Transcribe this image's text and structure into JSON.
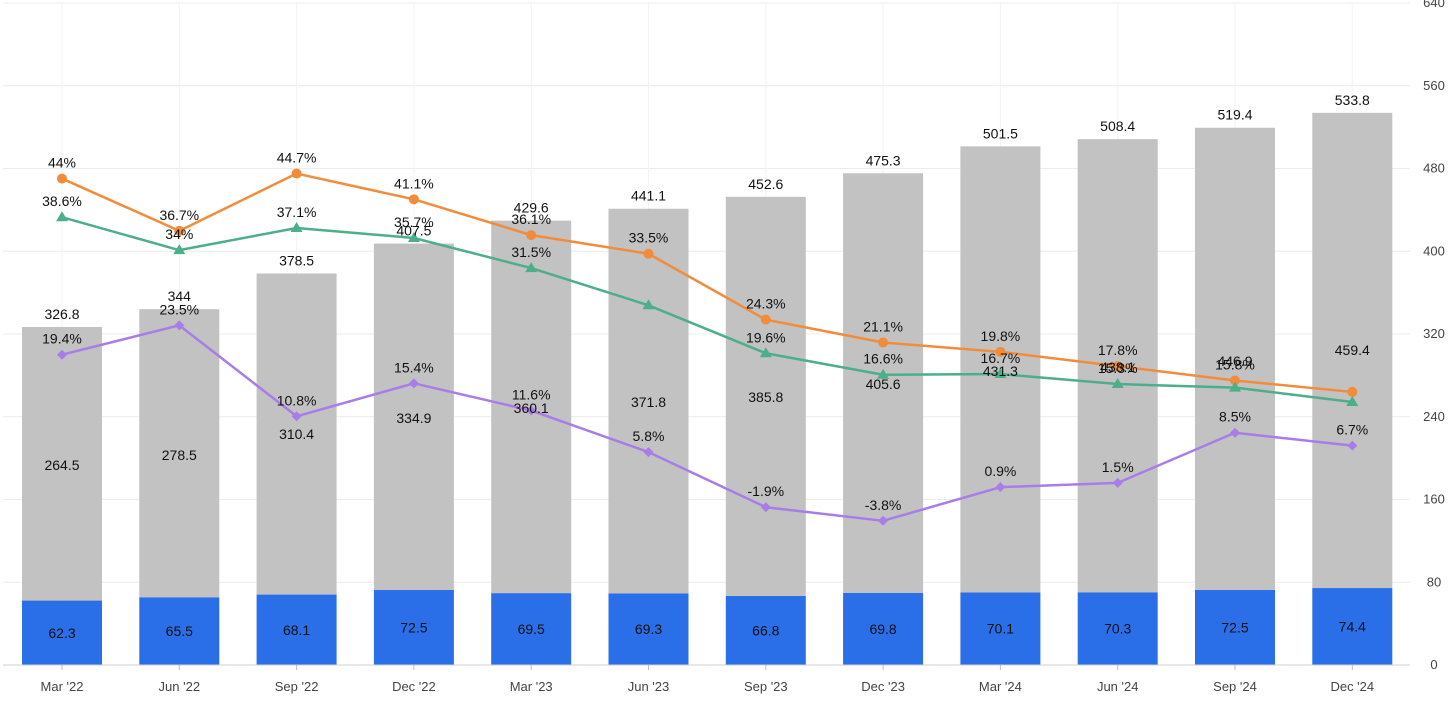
{
  "chart_data": {
    "type": "bar",
    "title": "",
    "xlabel": "",
    "ylabel": "",
    "ylim": [
      0,
      640
    ],
    "yticks": [
      0,
      80,
      160,
      240,
      320,
      400,
      480,
      560,
      640
    ],
    "grid": true,
    "categories": [
      "Mar '22",
      "Jun '22",
      "Sep '22",
      "Dec '22",
      "Mar '23",
      "Jun '23",
      "Sep '23",
      "Dec '23",
      "Mar '24",
      "Jun '24",
      "Sep '24",
      "Dec '24"
    ],
    "stack_series": [
      {
        "name": "Base",
        "color": "#2a6ee8",
        "label_color": "#111111",
        "values": [
          62.3,
          65.5,
          68.1,
          72.5,
          69.5,
          69.3,
          66.8,
          69.8,
          70.1,
          70.3,
          72.5,
          74.4
        ]
      },
      {
        "name": "Remainder",
        "color": "#c2c2c2",
        "label_color": "#111111",
        "values": [
          264.5,
          278.5,
          310.4,
          334.9,
          360.1,
          371.8,
          385.8,
          405.6,
          431.3,
          438.1,
          446.9,
          459.4
        ]
      }
    ],
    "totals": [
      326.8,
      344,
      378.5,
      407.5,
      429.6,
      441.1,
      452.6,
      475.3,
      501.5,
      508.4,
      519.4,
      533.8
    ],
    "line_series": [
      {
        "name": "Orange",
        "color": "#f28c3b",
        "marker": "circle",
        "values": [
          44,
          36.7,
          44.7,
          41.1,
          36.1,
          33.5,
          24.3,
          21.1,
          19.8,
          17.8,
          15.8,
          14.2
        ],
        "labels": [
          "44%",
          "36.7%",
          "44.7%",
          "41.1%",
          "36.1%",
          "33.5%",
          "24.3%",
          "21.1%",
          "19.8%",
          "17.8%",
          "15.8%",
          ""
        ]
      },
      {
        "name": "Green",
        "color": "#4caf8a",
        "marker": "triangle",
        "values": [
          38.6,
          34,
          37.1,
          35.7,
          31.5,
          26.3,
          19.6,
          16.6,
          16.7,
          15.3,
          14.8,
          12.8
        ],
        "labels": [
          "38.6%",
          "34%",
          "37.1%",
          "35.7%",
          "31.5%",
          "",
          "19.6%",
          "16.6%",
          "16.7%",
          "15.3%",
          "",
          ""
        ]
      },
      {
        "name": "Purple",
        "color": "#a87de8",
        "marker": "diamond",
        "values": [
          19.4,
          23.5,
          10.8,
          15.4,
          11.6,
          5.8,
          -1.9,
          -3.8,
          0.9,
          1.5,
          8.5,
          6.7
        ],
        "labels": [
          "19.4%",
          "23.5%",
          "10.8%",
          "15.4%",
          "11.6%",
          "5.8%",
          "-1.9%",
          "-3.8%",
          "0.9%",
          "1.5%",
          "8.5%",
          "6.7%"
        ]
      }
    ]
  }
}
